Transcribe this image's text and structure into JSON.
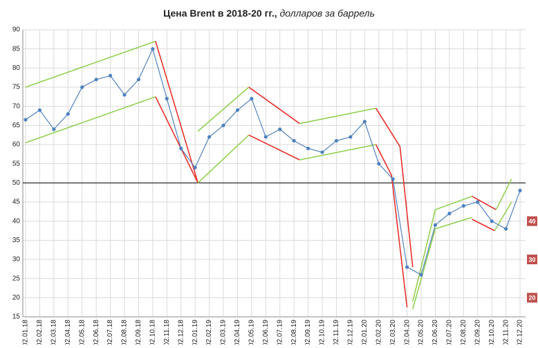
{
  "chart_data": {
    "type": "line",
    "title": "Цена Brent в 2018-20 гг.,",
    "subtitle": "долларов за баррель",
    "categories": [
      "02.01.18",
      "02.02.18",
      "02.03.18",
      "02.04.18",
      "02.05.18",
      "02.06.18",
      "02.07.18",
      "02.08.18",
      "02.09.18",
      "02.10.18",
      "02.11.18",
      "02.12.18",
      "02.01.19",
      "02.02.19",
      "02.03.19",
      "02.04.19",
      "02.05.19",
      "02.06.19",
      "02.07.19",
      "02.08.19",
      "02.09.19",
      "02.10.19",
      "02.11.19",
      "02.12.19",
      "02.01.20",
      "02.02.20",
      "02.03.20",
      "02.04.20",
      "02.05.20",
      "02.06.20",
      "02.07.20",
      "02.08.20",
      "02.09.20",
      "02.10.20",
      "02.11.20",
      "02.12.20"
    ],
    "values": [
      66.5,
      69,
      64,
      68,
      75,
      77,
      78,
      73,
      77,
      85,
      72,
      59,
      54,
      62,
      65,
      69,
      72,
      62,
      64,
      61,
      59,
      58,
      61,
      62,
      66,
      55,
      51,
      28,
      26,
      39,
      42,
      44,
      45,
      40,
      38,
      48
    ],
    "color": "#4f81bd",
    "ylim": [
      15,
      90
    ],
    "yticks": [
      15,
      20,
      25,
      30,
      35,
      40,
      45,
      50,
      55,
      60,
      65,
      70,
      75,
      80,
      85,
      90
    ],
    "grid": true,
    "reference_line": 50,
    "right_labels": [
      40,
      30,
      20
    ],
    "trend_lines": [
      {
        "color": "#92d050",
        "points": [
          [
            0,
            75
          ],
          [
            9.2,
            87
          ]
        ]
      },
      {
        "color": "#92d050",
        "points": [
          [
            0,
            60.5
          ],
          [
            9.2,
            72.5
          ]
        ]
      },
      {
        "color": "#e8302a",
        "points": [
          [
            9.2,
            87
          ],
          [
            12.2,
            50
          ]
        ]
      },
      {
        "color": "#e8302a",
        "points": [
          [
            9.2,
            72.5
          ],
          [
            12.2,
            50
          ]
        ]
      },
      {
        "color": "#92d050",
        "points": [
          [
            12.2,
            63.5
          ],
          [
            15.8,
            75
          ]
        ]
      },
      {
        "color": "#92d050",
        "points": [
          [
            12.2,
            50
          ],
          [
            15.8,
            62.5
          ]
        ]
      },
      {
        "color": "#e8302a",
        "points": [
          [
            15.8,
            75
          ],
          [
            19.4,
            65.5
          ]
        ]
      },
      {
        "color": "#e8302a",
        "points": [
          [
            15.8,
            62.5
          ],
          [
            19.4,
            56
          ]
        ]
      },
      {
        "color": "#92d050",
        "points": [
          [
            19.4,
            65.5
          ],
          [
            24.8,
            69.5
          ]
        ]
      },
      {
        "color": "#92d050",
        "points": [
          [
            19.4,
            56
          ],
          [
            24.8,
            60
          ]
        ]
      },
      {
        "color": "#e8302a",
        "points": [
          [
            24.8,
            69.5
          ],
          [
            26.5,
            59.5
          ],
          [
            27.4,
            28
          ]
        ]
      },
      {
        "color": "#e8302a",
        "points": [
          [
            24.8,
            60
          ],
          [
            25.9,
            52
          ],
          [
            27,
            17.5
          ]
        ]
      },
      {
        "color": "#92d050",
        "points": [
          [
            27.4,
            19
          ],
          [
            29,
            43
          ],
          [
            31.6,
            46.5
          ]
        ]
      },
      {
        "color": "#92d050",
        "points": [
          [
            27.4,
            17
          ],
          [
            29,
            38
          ],
          [
            31.6,
            41
          ]
        ]
      },
      {
        "color": "#e8302a",
        "points": [
          [
            31.6,
            46.5
          ],
          [
            33.3,
            43
          ]
        ]
      },
      {
        "color": "#e8302a",
        "points": [
          [
            31.6,
            40.5
          ],
          [
            33.2,
            37.5
          ]
        ]
      },
      {
        "color": "#92d050",
        "points": [
          [
            33.3,
            43
          ],
          [
            34.4,
            51
          ]
        ]
      },
      {
        "color": "#92d050",
        "points": [
          [
            33.2,
            37.5
          ],
          [
            34.4,
            45
          ]
        ]
      }
    ]
  }
}
